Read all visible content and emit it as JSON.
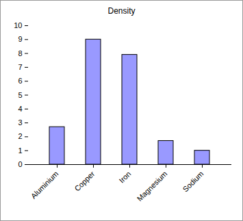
{
  "chart_data": {
    "type": "bar",
    "title": "Density",
    "categories": [
      "Aluminium",
      "Copper",
      "Iron",
      "Magnesium",
      "Sodium"
    ],
    "values": [
      2.7,
      9.0,
      7.9,
      1.7,
      1.0
    ],
    "color": "#9999ff",
    "ylim": [
      0,
      10
    ],
    "yticks": [
      0,
      1,
      2,
      3,
      4,
      5,
      6,
      7,
      8,
      9,
      10
    ],
    "grid": false
  }
}
